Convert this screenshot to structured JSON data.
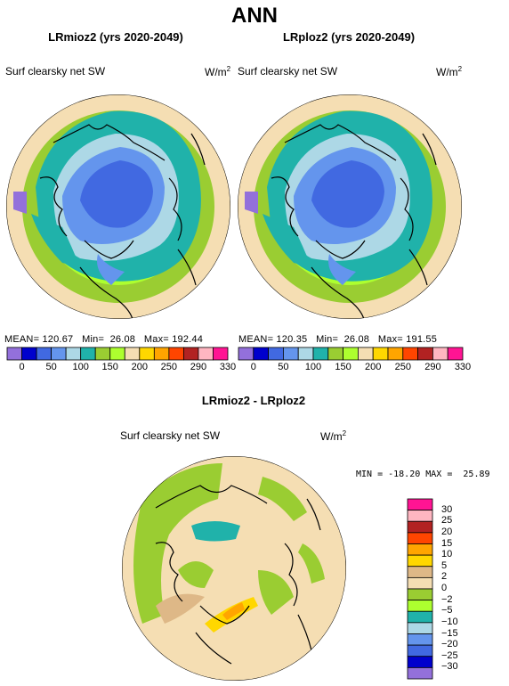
{
  "title": "ANN",
  "panels": [
    {
      "title": "LRmioz2 (yrs 2020-2049)",
      "variable": "Surf clearsky net SW",
      "units": "W/m",
      "units_sup": "2",
      "stats": {
        "mean_label": "MEAN=",
        "mean": "120.67",
        "min_label": "Min=",
        "min": "26.08",
        "max_label": "Max=",
        "max": "192.44"
      }
    },
    {
      "title": "LRploz2 (yrs 2020-2049)",
      "variable": "Surf clearsky net SW",
      "units": "W/m",
      "units_sup": "2",
      "stats": {
        "mean_label": "MEAN=",
        "mean": "120.35",
        "min_label": "Min=",
        "min": "26.08",
        "max_label": "Max=",
        "max": "191.55"
      }
    }
  ],
  "top_colorbar": {
    "colors": [
      "#9370DB",
      "#0000CD",
      "#4169E1",
      "#6495ED",
      "#ADD8E6",
      "#20B2AA",
      "#9ACD32",
      "#ADFF2F",
      "#F5DEB3",
      "#FFD700",
      "#FFA500",
      "#FF4500",
      "#B22222",
      "#FFB6C1",
      "#FF1493"
    ],
    "labels": [
      "0",
      "50",
      "100",
      "150",
      "200",
      "250",
      "290",
      "330"
    ],
    "label_offsets": [
      1,
      3,
      5,
      7,
      9,
      11,
      13,
      15
    ],
    "tick_labels_full": [
      "0",
      "50",
      "100",
      "150",
      "200",
      "250",
      "290",
      "330"
    ]
  },
  "top_colorbar_labels": [
    "0",
    "50",
    "100",
    "150",
    "200",
    "250",
    "290",
    "330"
  ],
  "diff": {
    "title": "LRmioz2 - LRploz2",
    "variable": "Surf clearsky net SW",
    "units": "W/m",
    "units_sup": "2",
    "minmax": "MIN = -18.20 MAX =  25.89"
  },
  "diff_colorbar": {
    "colors": [
      "#FF1493",
      "#FFB6C1",
      "#B22222",
      "#FF4500",
      "#FFA500",
      "#FFD700",
      "#DEB887",
      "#F5DEB3",
      "#9ACD32",
      "#ADFF2F",
      "#20B2AA",
      "#ADD8E6",
      "#6495ED",
      "#4169E1",
      "#0000CD",
      "#9370DB"
    ],
    "labels": [
      "30",
      "25",
      "20",
      "15",
      "10",
      "5",
      "2",
      "0",
      "−2",
      "−5",
      "−10",
      "−15",
      "−20",
      "−25",
      "−30"
    ]
  }
}
